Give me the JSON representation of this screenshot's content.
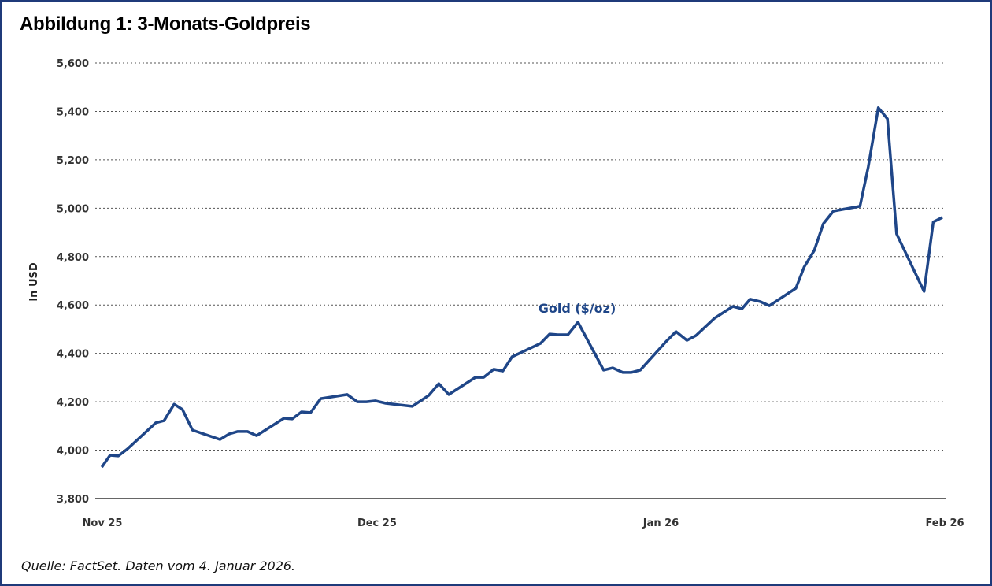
{
  "title": "Abbildung  1:  3-Monats-Goldpreis",
  "source": "Quelle: FactSet. Daten vom 4. Januar 2026.",
  "colors": {
    "line": "#1f4688",
    "frame": "#1f3a7a",
    "grid": "#555555"
  },
  "chart_data": {
    "type": "line",
    "title": "Abbildung 1: 3-Monats-Goldpreis",
    "xlabel": "",
    "ylabel": "In USD",
    "ylim": [
      3800,
      5600
    ],
    "yticks": [
      3800,
      4000,
      4200,
      4400,
      4600,
      4800,
      5000,
      5200,
      5400,
      5600
    ],
    "ytick_labels": [
      "3,800",
      "4,000",
      "4,200",
      "4,400",
      "4,600",
      "4,800",
      "5,000",
      "5,200",
      "5,400",
      "5,600"
    ],
    "x_unit": "days since start of Nov 2025",
    "xlim": [
      0,
      92
    ],
    "xticks": [
      0,
      30,
      61,
      92
    ],
    "xtick_labels": [
      "Nov 25",
      "Dec 25",
      "Jan 26",
      "Feb 26"
    ],
    "grid": "horizontal dotted",
    "series": [
      {
        "name": "Gold ($/oz)",
        "x": [
          0.2,
          1.1,
          2,
          3,
          6.1,
          7,
          8.1,
          9,
          10.1,
          13.1,
          14.1,
          15,
          16.1,
          17.1,
          20.1,
          21,
          22,
          23,
          24.1,
          27,
          28.1,
          29.1,
          30.1,
          31.2,
          34.1,
          35.9,
          37,
          38.1,
          41,
          41.9,
          43,
          44,
          45,
          48.1,
          49.1,
          50,
          51.1,
          52.2,
          55,
          56,
          57.1,
          58,
          59,
          61.8,
          62.9,
          64.1,
          65.1,
          67.1,
          69.1,
          70.1,
          71,
          72.1,
          73.1,
          76,
          76.9,
          78,
          79,
          80.1,
          83,
          83.9,
          85,
          86,
          87,
          90,
          91,
          92
        ],
        "values": [
          3930,
          3979,
          3976,
          4005,
          4113,
          4122,
          4190,
          4168,
          4083,
          4044,
          4067,
          4077,
          4077,
          4060,
          4132,
          4129,
          4158,
          4155,
          4213,
          4230,
          4200,
          4200,
          4204,
          4194,
          4181,
          4226,
          4275,
          4230,
          4301,
          4301,
          4334,
          4327,
          4386,
          4441,
          4480,
          4477,
          4477,
          4529,
          4331,
          4340,
          4321,
          4321,
          4331,
          4448,
          4490,
          4454,
          4474,
          4545,
          4594,
          4584,
          4624,
          4614,
          4597,
          4669,
          4757,
          4825,
          4936,
          4988,
          5008,
          5170,
          5415,
          5369,
          4894,
          4656,
          4943,
          4962
        ]
      }
    ]
  }
}
